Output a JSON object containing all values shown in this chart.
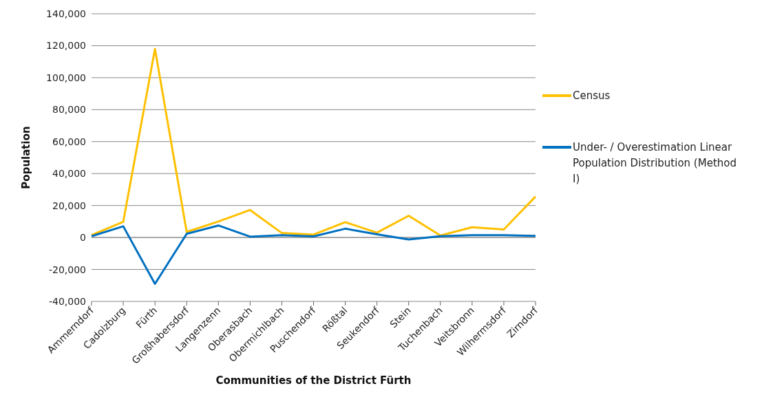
{
  "chart_data": {
    "type": "line",
    "xlabel": "Communities of the District Fürth",
    "ylabel": "Population",
    "categories": [
      "Ammerndorf",
      "Cadolzburg",
      "Fürth",
      "Großhabersdorf",
      "Langenzenn",
      "Oberasbach",
      "Obermichlbach",
      "Puschendorf",
      "Rößtal",
      "Seukendorf",
      "Stein",
      "Tuchenbach",
      "Veitsbronn",
      "Wilhermsdorf",
      "Zirndorf"
    ],
    "series": [
      {
        "name": "Census",
        "color": "#ffc000",
        "values": [
          1500,
          9800,
          118000,
          3500,
          10000,
          17200,
          2800,
          1800,
          9600,
          3000,
          13600,
          1200,
          6400,
          5000,
          25600
        ]
      },
      {
        "name": "Under- / Overestimation Linear Population Distribution (Method Ⅰ)",
        "color": "#0070c0",
        "values": [
          800,
          7000,
          -29000,
          2300,
          7500,
          500,
          1500,
          700,
          5500,
          2000,
          -1200,
          800,
          1500,
          1500,
          1000
        ]
      }
    ],
    "ylim": [
      -40000,
      140000
    ],
    "yticks": [
      {
        "value": -40000,
        "label": "-40,000"
      },
      {
        "value": -20000,
        "label": "-20,000"
      },
      0,
      {
        "value": 20000,
        "label": "20,000"
      },
      {
        "value": 40000,
        "label": "40,000"
      },
      {
        "value": 60000,
        "label": "60,000"
      },
      {
        "value": 80000,
        "label": "80,000"
      },
      {
        "value": 100000,
        "label": "100,000"
      },
      {
        "value": 120000,
        "label": "120,000"
      },
      {
        "value": 140000,
        "label": "140,000"
      }
    ],
    "grid": "y",
    "legend": "right",
    "marker": "none",
    "line_style": "solid"
  }
}
